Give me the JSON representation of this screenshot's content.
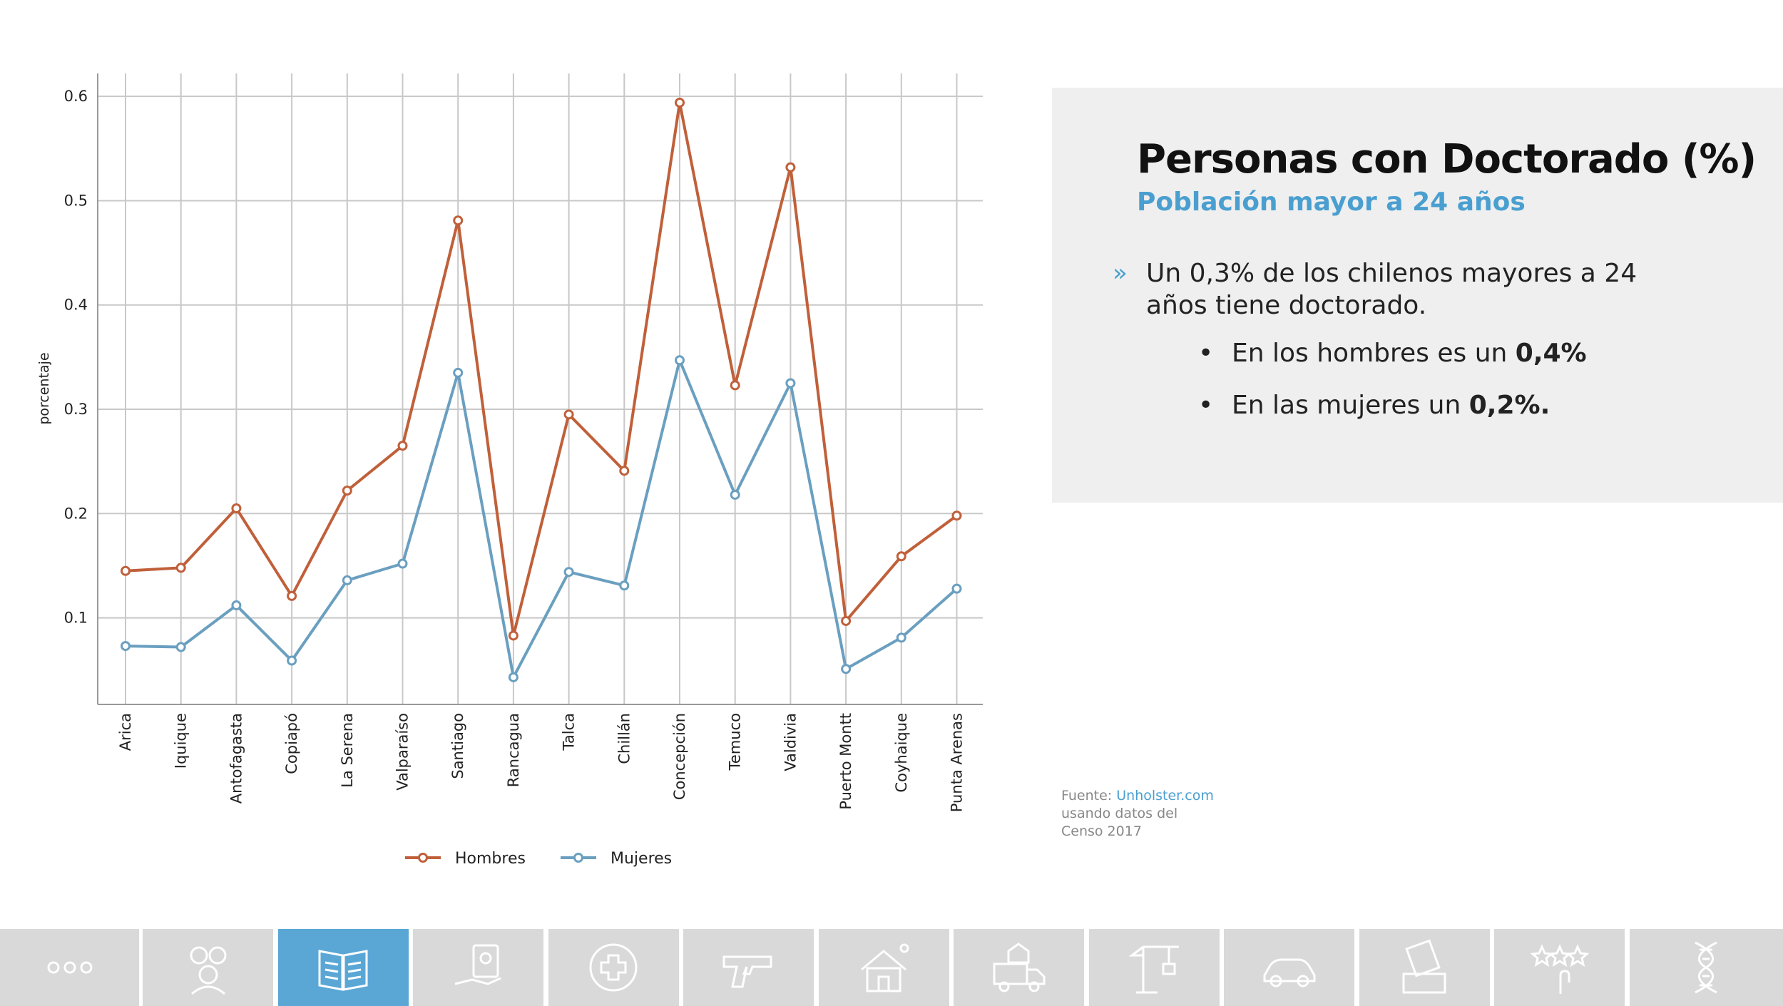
{
  "chart_data": {
    "type": "line",
    "categories": [
      "Arica",
      "Iquique",
      "Antofagasta",
      "Copiapó",
      "La Serena",
      "Valparaíso",
      "Santiago",
      "Rancagua",
      "Talca",
      "Chillán",
      "Concepción",
      "Temuco",
      "Valdivia",
      "Puerto Montt",
      "Coyhaique",
      "Punta Arenas"
    ],
    "series": [
      {
        "name": "Hombres",
        "color": "#c0603a",
        "values": [
          0.145,
          0.148,
          0.205,
          0.121,
          0.222,
          0.265,
          0.481,
          0.083,
          0.295,
          0.241,
          0.594,
          0.323,
          0.532,
          0.097,
          0.159,
          0.198
        ]
      },
      {
        "name": "Mujeres",
        "color": "#6a9fc0",
        "values": [
          0.073,
          0.072,
          0.112,
          0.059,
          0.136,
          0.152,
          0.335,
          0.043,
          0.144,
          0.131,
          0.347,
          0.218,
          0.325,
          0.051,
          0.081,
          0.128
        ]
      }
    ],
    "ylabel": "porcentaje",
    "xlabel": "",
    "ylim": [
      0.017,
      0.622
    ],
    "yticks": [
      0.1,
      0.2,
      0.3,
      0.4,
      0.5,
      0.6
    ],
    "ytick_labels": [
      "0.1",
      "0.2",
      "0.3",
      "0.4",
      "0.5",
      "0.6"
    ],
    "grid": true,
    "legend_position": "bottom-center"
  },
  "info": {
    "title": "Personas con Doctorado (%)",
    "subtitle": "Población mayor a 24 años",
    "bullet_marker": "»",
    "main_bullet": "Un 0,3% de los chilenos mayores a 24 años tiene doctorado.",
    "sub_bullets": [
      {
        "dot": "•",
        "text": "En los hombres es un ",
        "bold": "0,4%"
      },
      {
        "dot": "•",
        "text": "En las mujeres un ",
        "bold": "0,2%."
      }
    ]
  },
  "source": {
    "prefix": "Fuente: ",
    "link": "Unholster.com",
    "line2": "usando datos del",
    "line3": "Censo 2017"
  },
  "nav": {
    "active_index": 2,
    "tiles": [
      {
        "icon": "more-dots-icon"
      },
      {
        "icon": "people-group-icon"
      },
      {
        "icon": "open-book-icon"
      },
      {
        "icon": "hand-document-icon"
      },
      {
        "icon": "medical-cross-icon"
      },
      {
        "icon": "pistol-icon"
      },
      {
        "icon": "house-icon"
      },
      {
        "icon": "moving-truck-icon"
      },
      {
        "icon": "construction-crane-icon"
      },
      {
        "icon": "car-icon"
      },
      {
        "icon": "voting-ballot-icon"
      },
      {
        "icon": "star-rating-icon"
      },
      {
        "icon": "dna-icon"
      }
    ]
  }
}
